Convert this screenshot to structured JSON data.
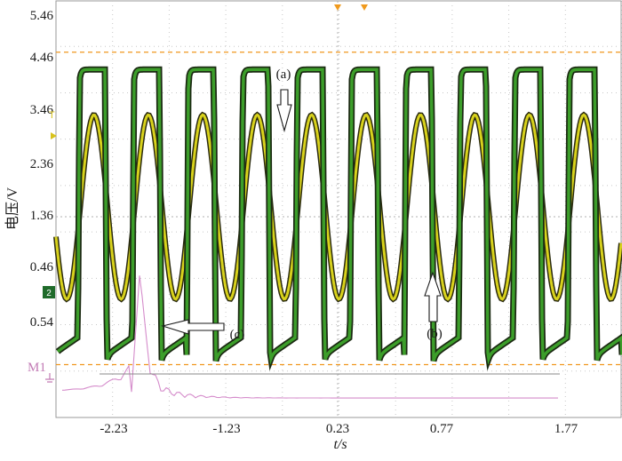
{
  "chart_data": {
    "type": "line",
    "title": "",
    "xlabel": "t/s",
    "ylabel": "电压/V",
    "x_ticks": [
      "-2.23",
      "-1.23",
      "0.23",
      "0.77",
      "1.77"
    ],
    "y_ticks_upper": [
      "5.46",
      "4.46",
      "3.46",
      "2.36",
      "1.36",
      "0.46"
    ],
    "y_ticks_lower": [
      "0.54"
    ],
    "xlim": [
      -2.8,
      2.4
    ],
    "ylim": [
      -0.4,
      5.6
    ],
    "grid": true,
    "reference_levels": [
      4.85,
      0.36
    ],
    "series": [
      {
        "key": "a",
        "period": 0.5,
        "phase": -2.6,
        "min": 1.3,
        "max": 3.95,
        "shape": "sine",
        "color": "#d8d21c"
      },
      {
        "key": "b",
        "period": 0.5,
        "phase": -2.6,
        "min": 0.5,
        "max": 4.6,
        "shape": "square",
        "color": "#3c9e2a"
      },
      {
        "key": "c",
        "peak_x": -2.03,
        "peak": 1.7,
        "baseline": -0.12,
        "shape": "spike",
        "color": "#d58ccb"
      }
    ],
    "annotations": [
      {
        "label": "(a)",
        "target": "yellow-sine"
      },
      {
        "label": "(b)",
        "target": "green-square"
      },
      {
        "label": "(c)",
        "target": "pink-spike"
      }
    ],
    "markers": [
      "T",
      "2",
      "M1"
    ]
  }
}
